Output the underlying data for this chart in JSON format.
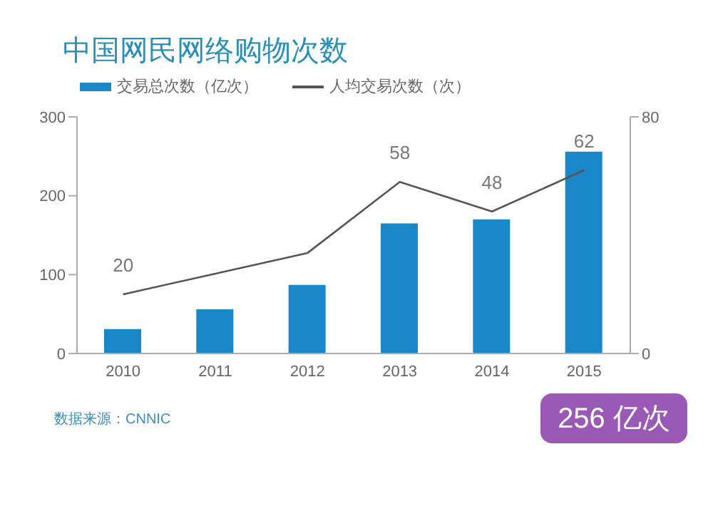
{
  "chart_data": {
    "type": "bar",
    "title": "中国网民网络购物次数",
    "categories": [
      "2010",
      "2011",
      "2012",
      "2013",
      "2014",
      "2015"
    ],
    "series": [
      {
        "name": "交易总次数（亿次）",
        "color": "#1a87c9",
        "values": [
          31,
          56,
          87,
          165,
          170,
          256
        ]
      },
      {
        "name": "人均交易次数（次）",
        "type": "line",
        "axis": "y2",
        "color": "#555555",
        "values": [
          20,
          27,
          34,
          58,
          48,
          62
        ],
        "value_labels": [
          "20",
          null,
          null,
          "58",
          "48",
          "62"
        ]
      }
    ],
    "ylim": [
      0,
      300
    ],
    "yticks": [
      0,
      100,
      200,
      300
    ],
    "y2lim": [
      0,
      80
    ],
    "y2ticks": [
      0,
      80
    ],
    "grid": false,
    "legend": "top left",
    "marker": "none",
    "annotations": [
      "数据来源：CNNIC",
      "256 亿次"
    ]
  }
}
